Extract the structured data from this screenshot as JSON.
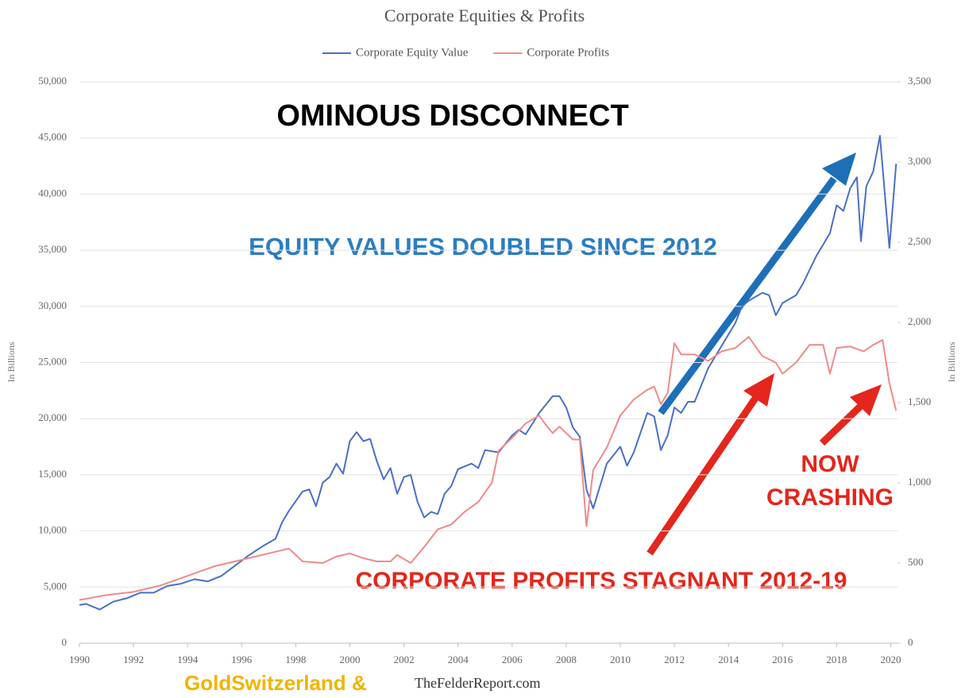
{
  "chart_data": {
    "type": "line",
    "title": "Corporate Equities & Profits",
    "y_label": "In Billions",
    "y2_label": "In Billions",
    "xlim": [
      1990,
      2020.25
    ],
    "xticks": [
      1990,
      1992,
      1994,
      1996,
      1998,
      2000,
      2002,
      2004,
      2006,
      2008,
      2010,
      2012,
      2014,
      2016,
      2018,
      2020
    ],
    "ylim": [
      0,
      50000
    ],
    "yticks": [
      0,
      {
        "value": 5000,
        "label": "5,000"
      },
      {
        "value": 10000,
        "label": "10,000"
      },
      {
        "value": 15000,
        "label": "15,000"
      },
      {
        "value": 20000,
        "label": "20,000"
      },
      {
        "value": 25000,
        "label": "25,000"
      },
      {
        "value": 30000,
        "label": "30,000"
      },
      {
        "value": 35000,
        "label": "35,000"
      },
      {
        "value": 40000,
        "label": "40,000"
      },
      {
        "value": 45000,
        "label": "45,000"
      },
      {
        "value": 50000,
        "label": "50,000"
      }
    ],
    "y2lim": [
      0,
      3500
    ],
    "y2ticks": [
      0,
      500,
      {
        "value": 1000,
        "label": "1,000"
      },
      {
        "value": 1500,
        "label": "1,500"
      },
      {
        "value": 2000,
        "label": "2,000"
      },
      {
        "value": 2500,
        "label": "2,500"
      },
      {
        "value": 3000,
        "label": "3,000"
      },
      {
        "value": 3500,
        "label": "3,500"
      }
    ],
    "grid": true,
    "legend": "top",
    "series": [
      {
        "name": "Corporate Equity Value",
        "color": "#4a6fc7",
        "x": [
          1990.0,
          1990.25,
          1990.75,
          1991.25,
          1991.75,
          1992.25,
          1992.75,
          1993.25,
          1993.75,
          1994.25,
          1994.75,
          1995.25,
          1995.75,
          1996.25,
          1996.75,
          1997.25,
          1997.5,
          1997.75,
          1998.25,
          1998.5,
          1998.75,
          1999.0,
          1999.25,
          1999.5,
          1999.75,
          2000.0,
          2000.25,
          2000.5,
          2000.75,
          2001.0,
          2001.25,
          2001.5,
          2001.75,
          2002.0,
          2002.25,
          2002.5,
          2002.75,
          2003.0,
          2003.25,
          2003.5,
          2003.75,
          2004.0,
          2004.5,
          2004.75,
          2005.0,
          2005.5,
          2006.0,
          2006.25,
          2006.5,
          2007.0,
          2007.5,
          2007.75,
          2008.0,
          2008.25,
          2008.5,
          2008.75,
          2009.0,
          2009.25,
          2009.5,
          2010.0,
          2010.25,
          2010.5,
          2011.0,
          2011.25,
          2011.5,
          2011.75,
          2012.0,
          2012.25,
          2012.5,
          2012.75,
          2013.25,
          2013.75,
          2014.25,
          2014.5,
          2014.75,
          2015.25,
          2015.5,
          2015.75,
          2016.0,
          2016.5,
          2016.75,
          2017.25,
          2017.75,
          2018.0,
          2018.25,
          2018.5,
          2018.75,
          2018.9,
          2019.1,
          2019.35,
          2019.6,
          2019.95,
          2020.2
        ],
        "values": [
          3400,
          3500,
          3000,
          3700,
          4000,
          4500,
          4500,
          5100,
          5300,
          5700,
          5500,
          6000,
          6900,
          7800,
          8600,
          9300,
          10800,
          11800,
          13500,
          13700,
          12200,
          14300,
          14800,
          16000,
          15100,
          18000,
          18800,
          18000,
          18200,
          16200,
          14600,
          15600,
          13300,
          14800,
          15000,
          12600,
          11200,
          11700,
          11500,
          13300,
          14000,
          15500,
          16000,
          15600,
          17200,
          17000,
          18500,
          19000,
          18600,
          20500,
          22000,
          22000,
          21000,
          19200,
          18400,
          13700,
          12000,
          14000,
          16000,
          17500,
          15800,
          17000,
          20500,
          20200,
          17200,
          18500,
          21000,
          20500,
          21500,
          21500,
          24500,
          26500,
          28500,
          30000,
          30500,
          31200,
          31000,
          29200,
          30300,
          31000,
          32000,
          34500,
          36500,
          39000,
          38500,
          40500,
          41500,
          35800,
          40700,
          42000,
          45200,
          35200,
          42700
        ]
      },
      {
        "name": "Corporate Profits",
        "color": "#f08a8a",
        "axis": "y2",
        "x": [
          1990.0,
          1991.0,
          1992.0,
          1993.0,
          1994.0,
          1995.0,
          1996.0,
          1997.0,
          1997.75,
          1998.25,
          1999.0,
          1999.5,
          2000.0,
          2000.5,
          2001.0,
          2001.5,
          2001.75,
          2002.25,
          2002.75,
          2003.25,
          2003.75,
          2004.25,
          2004.75,
          2005.0,
          2005.25,
          2005.5,
          2006.0,
          2006.5,
          2007.0,
          2007.25,
          2007.5,
          2007.75,
          2008.25,
          2008.5,
          2008.75,
          2009.0,
          2009.5,
          2010.0,
          2010.5,
          2011.0,
          2011.25,
          2011.5,
          2011.75,
          2012.0,
          2012.25,
          2012.75,
          2013.25,
          2013.75,
          2014.25,
          2014.75,
          2015.25,
          2015.75,
          2016.0,
          2016.5,
          2017.0,
          2017.5,
          2017.75,
          2018.0,
          2018.5,
          2019.0,
          2019.35,
          2019.7,
          2019.95,
          2020.2
        ],
        "values": [
          270,
          300,
          320,
          360,
          420,
          480,
          520,
          560,
          590,
          510,
          500,
          540,
          560,
          530,
          510,
          510,
          550,
          500,
          600,
          710,
          740,
          820,
          880,
          940,
          1000,
          1200,
          1280,
          1370,
          1420,
          1360,
          1310,
          1350,
          1270,
          1270,
          730,
          1080,
          1220,
          1420,
          1520,
          1580,
          1600,
          1490,
          1560,
          1870,
          1800,
          1800,
          1760,
          1820,
          1840,
          1910,
          1790,
          1750,
          1680,
          1750,
          1860,
          1860,
          1680,
          1840,
          1850,
          1820,
          1860,
          1890,
          1620,
          1450
        ]
      }
    ],
    "annotations": [
      "OMINOUS DISCONNECT",
      "EQUITY VALUES DOUBLED SINCE 2012",
      "CORPORATE PROFITS STAGNANT  2012-19",
      "NOW",
      "CRASHING"
    ],
    "credits": [
      "GoldSwitzerland &",
      "TheFelderReport.com"
    ]
  }
}
